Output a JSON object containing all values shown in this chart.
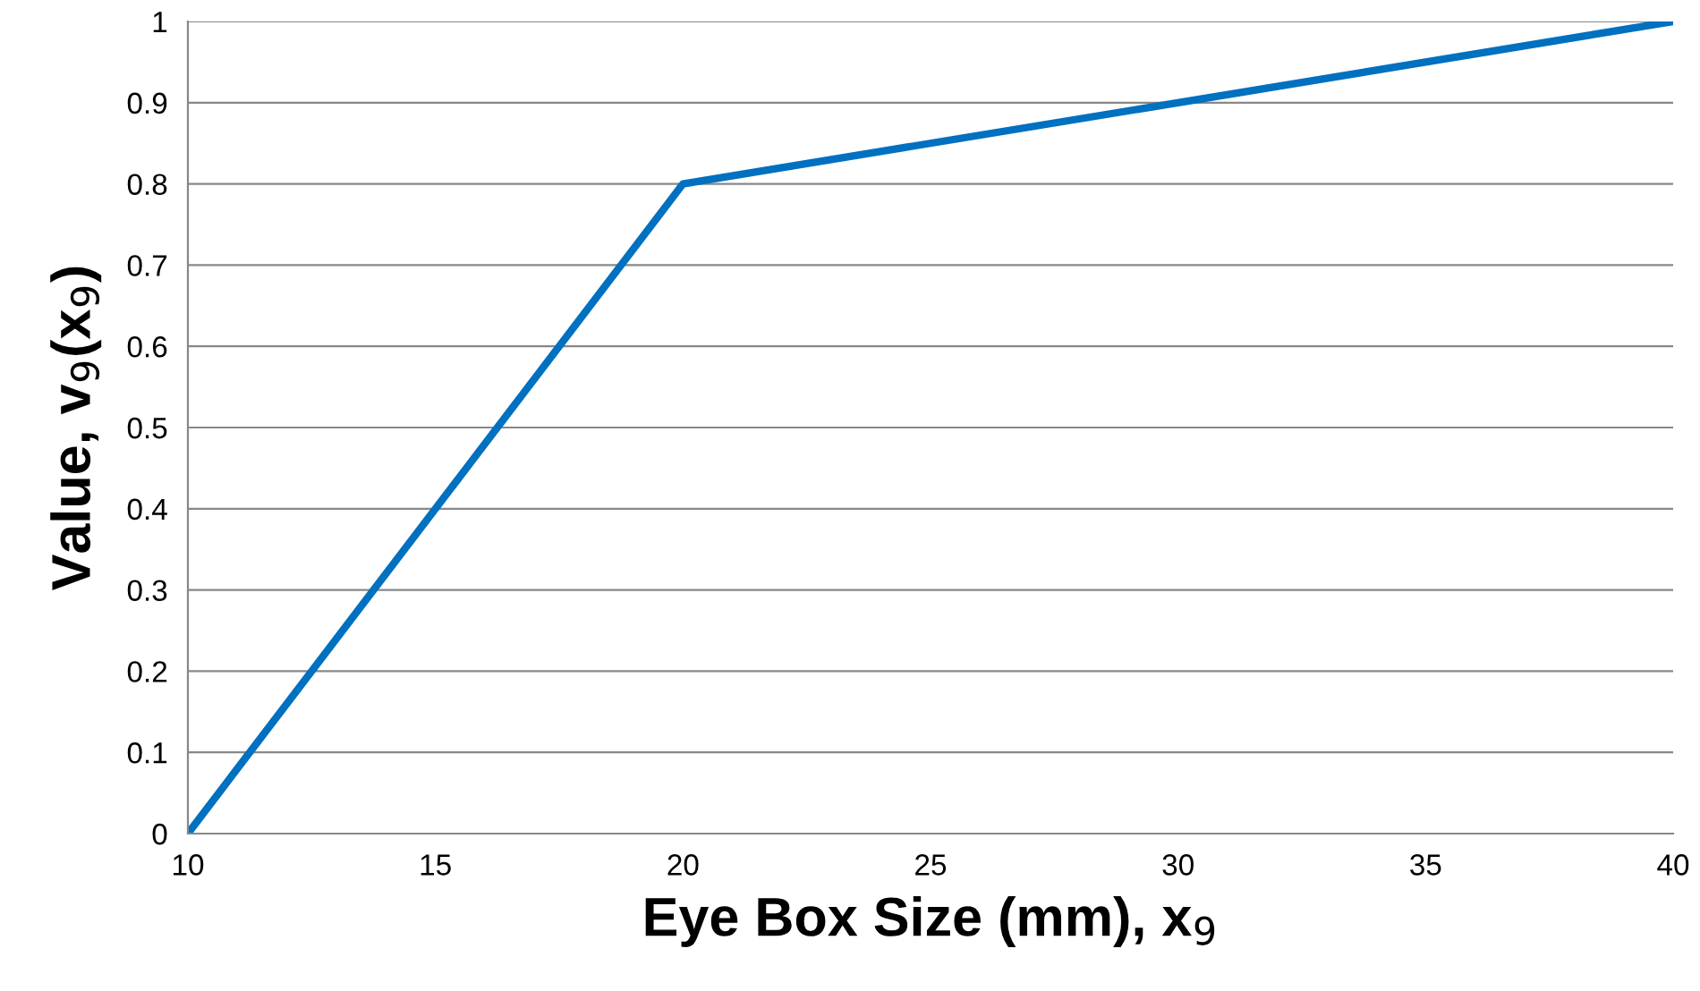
{
  "chart_data": {
    "type": "line",
    "xlabel": "Eye Box Size (mm), x$_{9}$",
    "ylabel": "Value, v$_{9}$(x$_{9}$)",
    "x": [
      10,
      20,
      40
    ],
    "series": [
      {
        "color": "#0070c0",
        "values": [
          0,
          0.8,
          1
        ]
      }
    ],
    "xlim": [
      10,
      40
    ],
    "ylim": [
      0,
      1
    ],
    "xticks": [
      10,
      15,
      20,
      25,
      30,
      35,
      40
    ],
    "yticks": [
      0,
      0.1,
      0.2,
      0.3,
      0.4,
      0.5,
      0.6,
      0.7,
      0.8,
      0.9,
      1
    ],
    "grid": "y",
    "marker": "none",
    "line_style": "solid",
    "legend": false
  }
}
